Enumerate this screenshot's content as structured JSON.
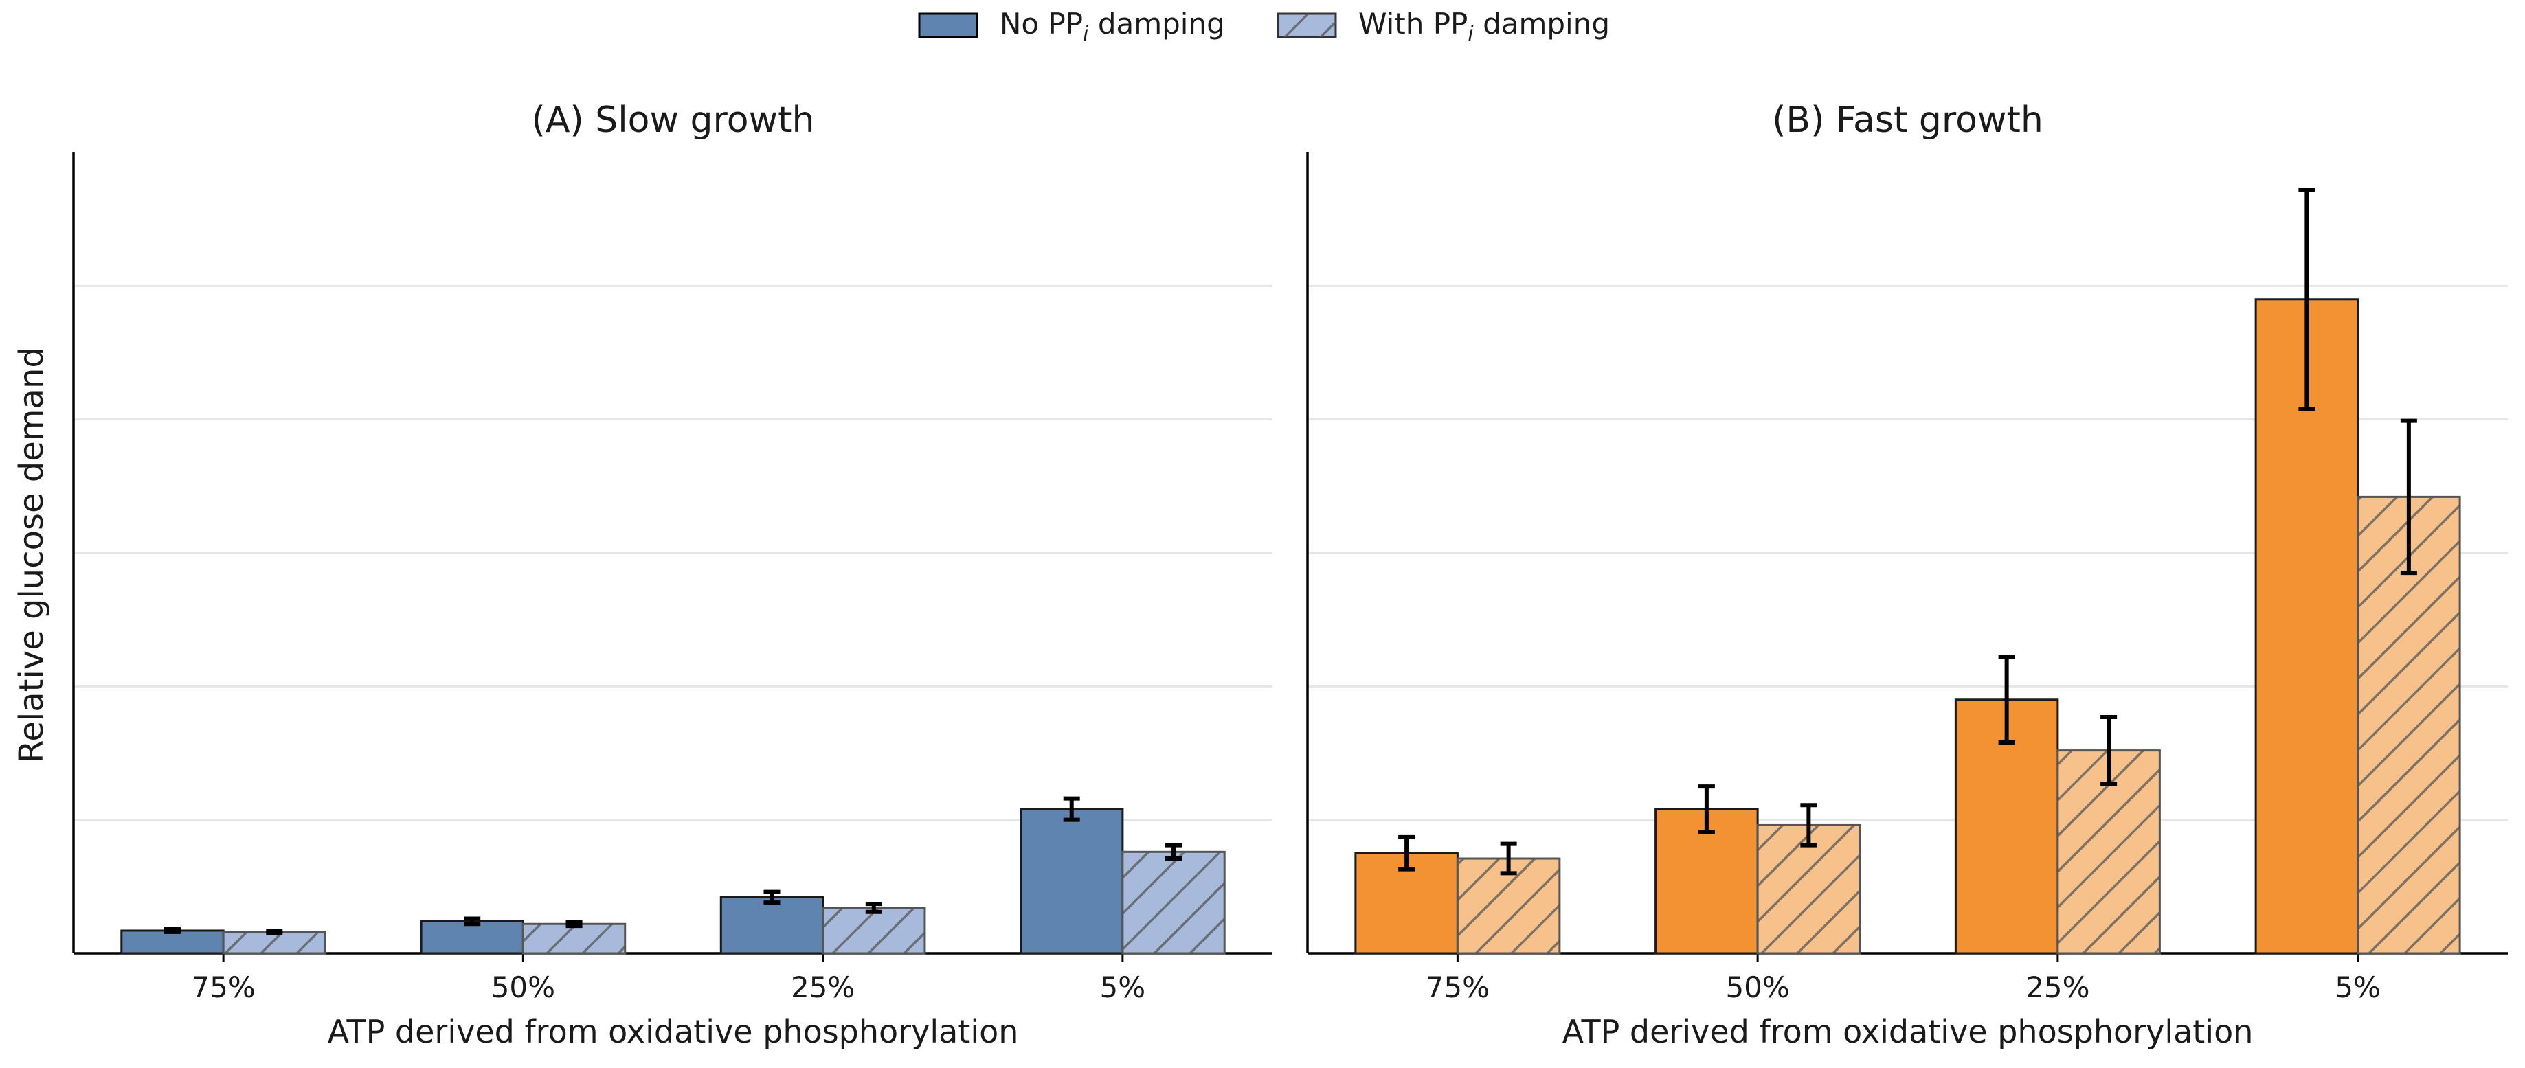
{
  "legend": {
    "items": [
      {
        "label_main": "No PP",
        "label_sub": "i",
        "label_tail": " damping",
        "style": "solid"
      },
      {
        "label_main": "With PP",
        "label_sub": "i",
        "label_tail": " damping",
        "style": "hatched"
      }
    ]
  },
  "ylabel": "Relative glucose demand",
  "colors": {
    "slow_solid": "#5f84b0",
    "slow_light": "#a7badb",
    "fast_solid": "#f39232",
    "fast_light": "#f7c18c",
    "grid": "#e6e6e6",
    "axis": "#000000"
  },
  "chart_data": [
    {
      "type": "bar",
      "title": "(A) Slow growth",
      "xlabel": "ATP derived from oxidative phosphorylation",
      "ylabel": "Relative glucose demand",
      "categories": [
        "75%",
        "50%",
        "25%",
        "5%"
      ],
      "ylim": [
        0,
        6
      ],
      "grid": "horizontal",
      "y_tick_labels_shown": false,
      "series": [
        {
          "name": "No PPi damping",
          "values": [
            0.17,
            0.24,
            0.42,
            1.08
          ],
          "errors": [
            0.01,
            0.02,
            0.04,
            0.08
          ]
        },
        {
          "name": "With PPi damping",
          "values": [
            0.16,
            0.22,
            0.34,
            0.76
          ],
          "errors": [
            0.01,
            0.015,
            0.03,
            0.05
          ]
        }
      ]
    },
    {
      "type": "bar",
      "title": "(B) Fast growth",
      "xlabel": "ATP derived from oxidative phosphorylation",
      "ylabel": "",
      "categories": [
        "75%",
        "50%",
        "25%",
        "5%"
      ],
      "ylim": [
        0,
        6
      ],
      "grid": "horizontal",
      "y_tick_labels_shown": false,
      "series": [
        {
          "name": "No PPi damping",
          "values": [
            0.75,
            1.08,
            1.9,
            4.9
          ],
          "errors": [
            0.12,
            0.17,
            0.32,
            0.82
          ]
        },
        {
          "name": "With PPi damping",
          "values": [
            0.71,
            0.96,
            1.52,
            3.42
          ],
          "errors": [
            0.11,
            0.15,
            0.25,
            0.57
          ]
        }
      ]
    }
  ]
}
